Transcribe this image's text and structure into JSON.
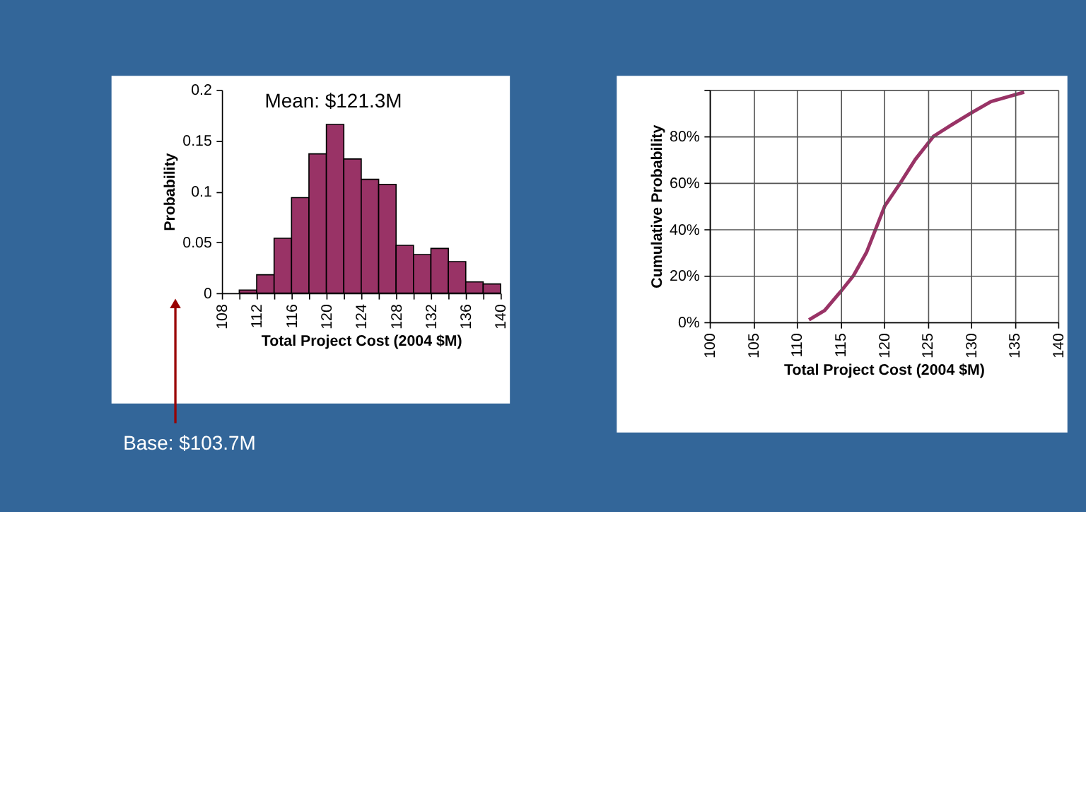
{
  "chart_data": [
    {
      "type": "histogram",
      "xlabel": "Total Project Cost (2004 $M)",
      "ylabel": "Probability",
      "bins": [
        108,
        110,
        112,
        114,
        116,
        118,
        120,
        122,
        124,
        126,
        128,
        130,
        132,
        134,
        136,
        138,
        140
      ],
      "values": [
        null,
        0.003,
        0.018,
        0.054,
        0.094,
        0.137,
        0.166,
        0.132,
        0.112,
        0.107,
        0.047,
        0.038,
        0.044,
        0.031,
        0.011,
        0.009
      ],
      "color": "#993366",
      "xlim": [
        108,
        140
      ],
      "xticks": [
        108,
        {
          "value": 110,
          "label": null
        },
        112,
        {
          "value": 114,
          "label": null
        },
        116,
        {
          "value": 118,
          "label": null
        },
        120,
        {
          "value": 122,
          "label": null
        },
        124,
        {
          "value": 126,
          "label": null
        },
        128,
        {
          "value": 130,
          "label": null
        },
        132,
        {
          "value": 134,
          "label": null
        },
        136,
        {
          "value": 138,
          "label": null
        },
        140
      ],
      "ylim": [
        0,
        0.2
      ],
      "yticks": [
        0,
        0.05,
        0.1,
        0.15,
        0.2
      ],
      "annotations": [
        "Mean: $121.3M",
        "Base: $103.7M"
      ]
    },
    {
      "type": "line",
      "xlabel": "Total Project Cost (2004 $M)",
      "ylabel": "Cumulative Probability",
      "x": [
        111.4,
        113.2,
        115.0,
        116.5,
        118.0,
        120.1,
        121.9,
        123.6,
        125.7,
        127.8,
        130.0,
        132.3,
        136.1
      ],
      "values": [
        0.01,
        0.05,
        0.13,
        0.2,
        0.3,
        0.5,
        0.6,
        0.7,
        0.8,
        0.85,
        0.9,
        0.95,
        0.99
      ],
      "color": "#993366",
      "marker": "none",
      "line_style": "solid",
      "xlim": [
        100,
        140
      ],
      "xticks": [
        100,
        105,
        110,
        115,
        120,
        125,
        130,
        135,
        140
      ],
      "ylim": [
        0,
        1
      ],
      "yticks": [
        {
          "value": 0,
          "label": "0%"
        },
        {
          "value": 0.2,
          "label": "20%"
        },
        {
          "value": 0.4,
          "label": "40%"
        },
        {
          "value": 0.6,
          "label": "60%"
        },
        {
          "value": 0.8,
          "label": "80%"
        },
        {
          "value": 1,
          "label": null
        }
      ],
      "grid": true
    }
  ]
}
